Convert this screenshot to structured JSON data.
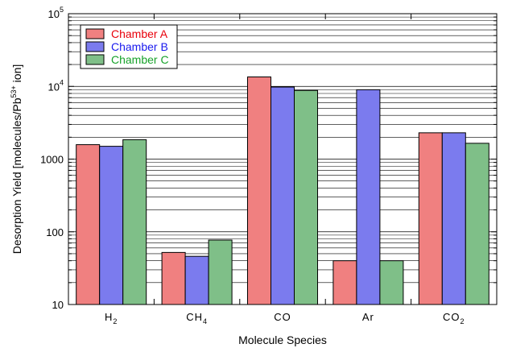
{
  "chart_data": {
    "type": "bar",
    "xlabel": "Molecule Species",
    "ylabel": {
      "prefix": "Desorption Yield [molecules/Pb",
      "superscript": "53+",
      "suffix": " ion]"
    },
    "yscale": "log",
    "ylim": [
      10,
      100000
    ],
    "grid": true,
    "legend_position": "top-left",
    "categories": [
      {
        "base": "H",
        "sub": "2"
      },
      {
        "base": "CH",
        "sub": "4"
      },
      {
        "base": "CO",
        "sub": ""
      },
      {
        "base": "Ar",
        "sub": ""
      },
      {
        "base": "CO",
        "sub": "2"
      }
    ],
    "series": [
      {
        "name": "Chamber A",
        "color": "#f08080",
        "text_color": "#e8000b",
        "values": [
          1580,
          52,
          13500,
          40,
          2300
        ]
      },
      {
        "name": "Chamber B",
        "color": "#7b7bee",
        "text_color": "#1a1aee",
        "values": [
          1500,
          46,
          9800,
          9000,
          2300
        ]
      },
      {
        "name": "Chamber C",
        "color": "#7fbf88",
        "text_color": "#17a22a",
        "values": [
          1850,
          77,
          8800,
          40,
          1650
        ]
      }
    ],
    "ytick_labels": [
      {
        "value": 10,
        "base": "10",
        "exp": ""
      },
      {
        "value": 100,
        "base": "100",
        "exp": ""
      },
      {
        "value": 1000,
        "base": "1000",
        "exp": ""
      },
      {
        "value": 10000,
        "base": "10",
        "exp": "4"
      },
      {
        "value": 100000,
        "base": "10",
        "exp": "5"
      }
    ]
  }
}
